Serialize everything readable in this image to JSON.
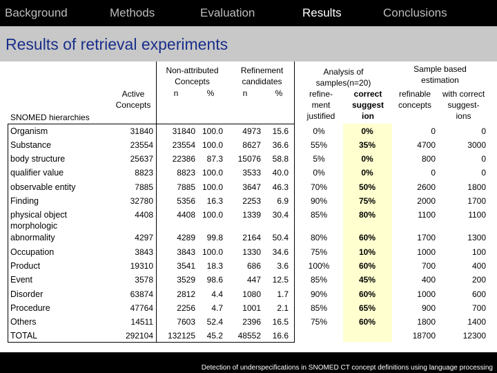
{
  "nav": [
    "Background",
    "Methods",
    "Evaluation",
    "Results",
    "Conclusions"
  ],
  "nav_active": 3,
  "title": "Results of retrieval experiments",
  "headers": {
    "hier": "SNOMED hierarchies",
    "active": [
      "Active",
      "Concepts"
    ],
    "nonattr": [
      "Non-attributed",
      "Concepts"
    ],
    "nonattr_n": "n",
    "nonattr_pct": "%",
    "refine": [
      "Refinement",
      "candidates"
    ],
    "refine_n": "n",
    "refine_pct": "%",
    "analysis": [
      "Analysis of",
      "samples(n=20)"
    ],
    "refinement_justified": [
      "refine-",
      "ment",
      "justified"
    ],
    "correct_suggestion": [
      "correct",
      "suggest",
      "ion"
    ],
    "sample": [
      "Sample based",
      "estimation"
    ],
    "refinable": [
      "refinable",
      "concepts"
    ],
    "with_correct": [
      "with correct",
      "suggest-",
      "ions"
    ]
  },
  "rows": [
    {
      "label": [
        "Organism"
      ],
      "active": "31840",
      "na_n": "31840",
      "na_pct": "100.0",
      "rc_n": "4973",
      "rc_pct": "15.6",
      "rj": "0%",
      "cs": "0%",
      "rf": "0",
      "wc": "0"
    },
    {
      "label": [
        "Substance"
      ],
      "active": "23554",
      "na_n": "23554",
      "na_pct": "100.0",
      "rc_n": "8627",
      "rc_pct": "36.6",
      "rj": "55%",
      "cs": "35%",
      "rf": "4700",
      "wc": "3000"
    },
    {
      "label": [
        "body structure"
      ],
      "active": "25637",
      "na_n": "22386",
      "na_pct": "87.3",
      "rc_n": "15076",
      "rc_pct": "58.8",
      "rj": "5%",
      "cs": "0%",
      "rf": "800",
      "wc": "0"
    },
    {
      "label": [
        "qualifier value"
      ],
      "active": "8823",
      "na_n": "8823",
      "na_pct": "100.0",
      "rc_n": "3533",
      "rc_pct": "40.0",
      "rj": "0%",
      "cs": "0%",
      "rf": "0",
      "wc": "0"
    },
    {
      "label": [
        "observable entity"
      ],
      "active": "7885",
      "na_n": "7885",
      "na_pct": "100.0",
      "rc_n": "3647",
      "rc_pct": "46.3",
      "rj": "70%",
      "cs": "50%",
      "rf": "2600",
      "wc": "1800"
    },
    {
      "label": [
        "Finding"
      ],
      "active": "32780",
      "na_n": "5356",
      "na_pct": "16.3",
      "rc_n": "2253",
      "rc_pct": "6.9",
      "rj": "90%",
      "cs": "75%",
      "rf": "2000",
      "wc": "1700"
    },
    {
      "label": [
        "physical object"
      ],
      "active": "4408",
      "na_n": "4408",
      "na_pct": "100.0",
      "rc_n": "1339",
      "rc_pct": "30.4",
      "rj": "85%",
      "cs": "80%",
      "rf": "1100",
      "wc": "1100"
    },
    {
      "label": [
        "morphologic",
        "abnormality"
      ],
      "active": "4297",
      "na_n": "4289",
      "na_pct": "99.8",
      "rc_n": "2164",
      "rc_pct": "50.4",
      "rj": "80%",
      "cs": "60%",
      "rf": "1700",
      "wc": "1300"
    },
    {
      "label": [
        "Occupation"
      ],
      "active": "3843",
      "na_n": "3843",
      "na_pct": "100.0",
      "rc_n": "1330",
      "rc_pct": "34.6",
      "rj": "75%",
      "cs": "10%",
      "rf": "1000",
      "wc": "100"
    },
    {
      "label": [
        "Product"
      ],
      "active": "19310",
      "na_n": "3541",
      "na_pct": "18.3",
      "rc_n": "686",
      "rc_pct": "3.6",
      "rj": "100%",
      "cs": "60%",
      "rf": "700",
      "wc": "400"
    },
    {
      "label": [
        "Event"
      ],
      "active": "3578",
      "na_n": "3529",
      "na_pct": "98.6",
      "rc_n": "447",
      "rc_pct": "12.5",
      "rj": "85%",
      "cs": "45%",
      "rf": "400",
      "wc": "200"
    },
    {
      "label": [
        "Disorder"
      ],
      "active": "63874",
      "na_n": "2812",
      "na_pct": "4.4",
      "rc_n": "1080",
      "rc_pct": "1.7",
      "rj": "90%",
      "cs": "60%",
      "rf": "1000",
      "wc": "600"
    },
    {
      "label": [
        "Procedure"
      ],
      "active": "47764",
      "na_n": "2256",
      "na_pct": "4.7",
      "rc_n": "1001",
      "rc_pct": "2.1",
      "rj": "85%",
      "cs": "65%",
      "rf": "900",
      "wc": "700"
    },
    {
      "label": [
        "Others"
      ],
      "active": "14511",
      "na_n": "7603",
      "na_pct": "52.4",
      "rc_n": "2396",
      "rc_pct": "16.5",
      "rj": "75%",
      "cs": "60%",
      "rf": "1800",
      "wc": "1400"
    },
    {
      "label": [
        "TOTAL"
      ],
      "active": "292104",
      "na_n": "132125",
      "na_pct": "45.2",
      "rc_n": "48552",
      "rc_pct": "16.6",
      "rj": "",
      "cs": "",
      "rf": "18700",
      "wc": "12300"
    }
  ],
  "footer": "Detection of underspecifications in SNOMED CT concept definitions using language processing",
  "colors": {
    "title": "#1a2f8a",
    "highlight": "#ffffd0",
    "bar": "#c8c8c8"
  }
}
